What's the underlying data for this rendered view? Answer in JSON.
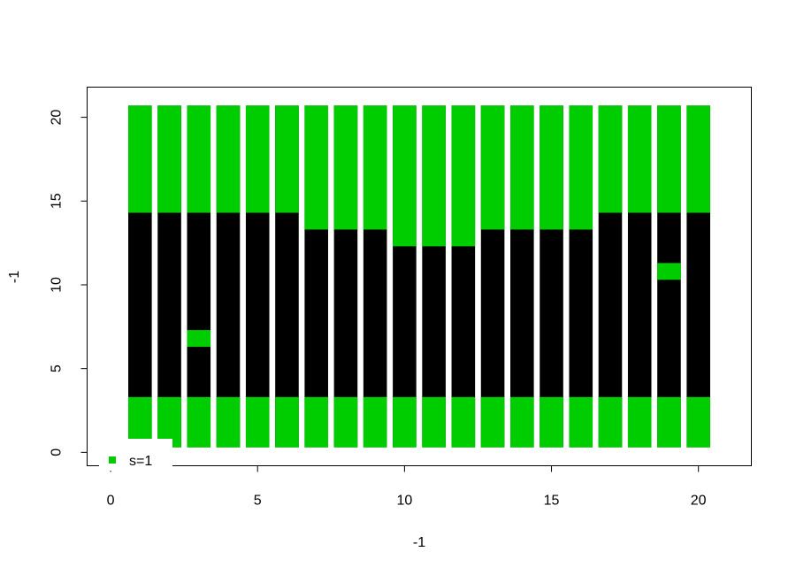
{
  "chart_data": {
    "type": "heatmap",
    "title": "",
    "xlabel": "-1",
    "ylabel": "-1",
    "xlim": [
      -0.8,
      21.8
    ],
    "ylim": [
      -0.8,
      21.8
    ],
    "x_ticks": [
      0,
      5,
      10,
      15,
      20
    ],
    "y_ticks": [
      0,
      5,
      10,
      15,
      20
    ],
    "cell_width": 0.8,
    "y_range": [
      0.3,
      20.7
    ],
    "colors": {
      "state_1": "#00cd00",
      "state_0": "#000000"
    },
    "columns": [
      {
        "x": 1,
        "green_spans": [
          [
            0.3,
            3.3
          ],
          [
            14.3,
            20.7
          ]
        ]
      },
      {
        "x": 2,
        "green_spans": [
          [
            0.3,
            3.3
          ],
          [
            14.3,
            20.7
          ]
        ]
      },
      {
        "x": 3,
        "green_spans": [
          [
            0.3,
            3.3
          ],
          [
            6.3,
            7.3
          ],
          [
            14.3,
            20.7
          ]
        ]
      },
      {
        "x": 4,
        "green_spans": [
          [
            0.3,
            3.3
          ],
          [
            14.3,
            20.7
          ]
        ]
      },
      {
        "x": 5,
        "green_spans": [
          [
            0.3,
            3.3
          ],
          [
            14.3,
            20.7
          ]
        ]
      },
      {
        "x": 6,
        "green_spans": [
          [
            0.3,
            3.3
          ],
          [
            14.3,
            20.7
          ]
        ]
      },
      {
        "x": 7,
        "green_spans": [
          [
            0.3,
            3.3
          ],
          [
            13.3,
            20.7
          ]
        ]
      },
      {
        "x": 8,
        "green_spans": [
          [
            0.3,
            3.3
          ],
          [
            13.3,
            20.7
          ]
        ]
      },
      {
        "x": 9,
        "green_spans": [
          [
            0.3,
            3.3
          ],
          [
            13.3,
            20.7
          ]
        ]
      },
      {
        "x": 10,
        "green_spans": [
          [
            0.3,
            3.3
          ],
          [
            12.3,
            20.7
          ]
        ]
      },
      {
        "x": 11,
        "green_spans": [
          [
            0.3,
            3.3
          ],
          [
            12.3,
            20.7
          ]
        ]
      },
      {
        "x": 12,
        "green_spans": [
          [
            0.3,
            3.3
          ],
          [
            12.3,
            20.7
          ]
        ]
      },
      {
        "x": 13,
        "green_spans": [
          [
            0.3,
            3.3
          ],
          [
            13.3,
            20.7
          ]
        ]
      },
      {
        "x": 14,
        "green_spans": [
          [
            0.3,
            3.3
          ],
          [
            13.3,
            20.7
          ]
        ]
      },
      {
        "x": 15,
        "green_spans": [
          [
            0.3,
            3.3
          ],
          [
            13.3,
            20.7
          ]
        ]
      },
      {
        "x": 16,
        "green_spans": [
          [
            0.3,
            3.3
          ],
          [
            13.3,
            20.7
          ]
        ]
      },
      {
        "x": 17,
        "green_spans": [
          [
            0.3,
            3.3
          ],
          [
            14.3,
            20.7
          ]
        ]
      },
      {
        "x": 18,
        "green_spans": [
          [
            0.3,
            3.3
          ],
          [
            14.3,
            20.7
          ]
        ]
      },
      {
        "x": 19,
        "green_spans": [
          [
            0.3,
            3.3
          ],
          [
            10.3,
            11.3
          ],
          [
            14.3,
            20.7
          ]
        ]
      },
      {
        "x": 20,
        "green_spans": [
          [
            0.3,
            3.3
          ],
          [
            14.3,
            20.7
          ]
        ]
      }
    ],
    "legend": {
      "position": "bottom-left",
      "entries": [
        {
          "label": "s=1",
          "color": "#00cd00"
        }
      ]
    },
    "grid": false
  }
}
